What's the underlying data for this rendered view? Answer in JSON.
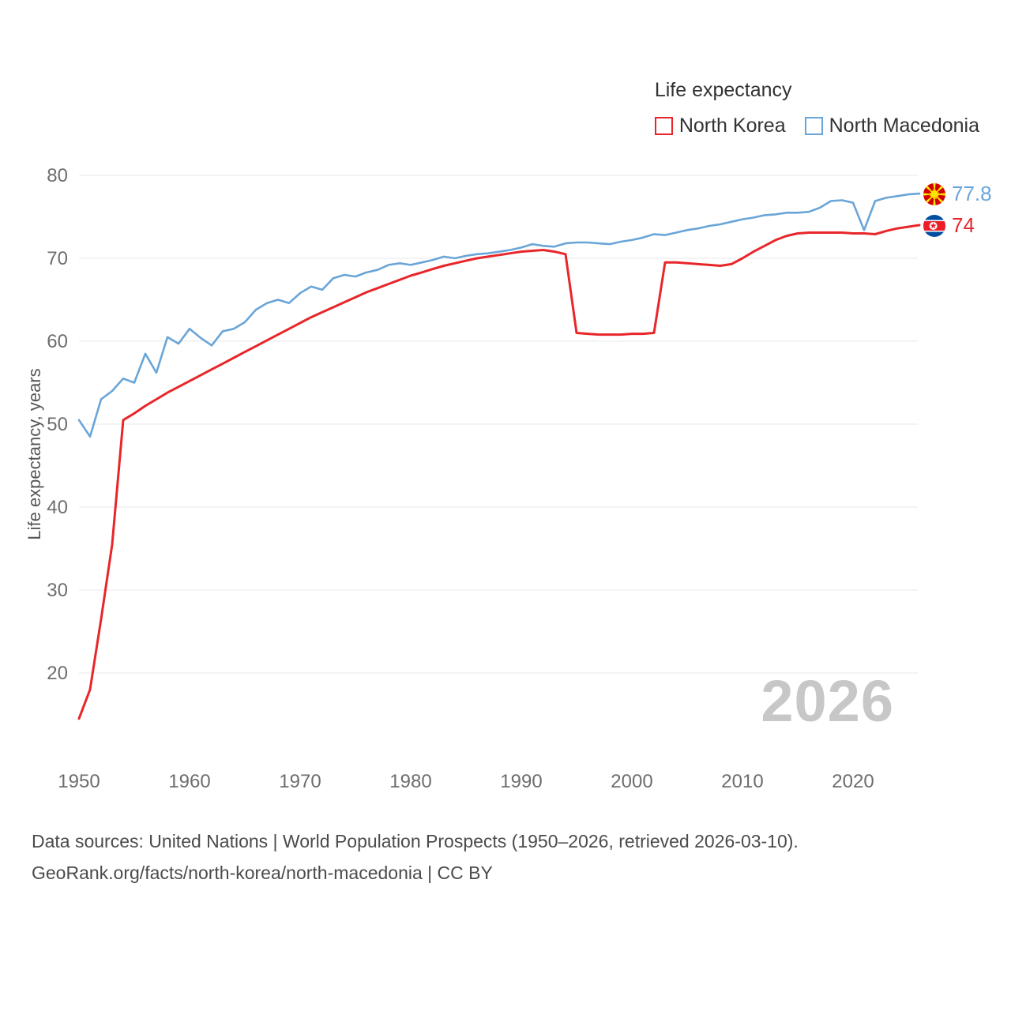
{
  "legend": {
    "title": "Life expectancy",
    "items": [
      {
        "label": "North Korea",
        "color": "#e8262a"
      },
      {
        "label": "North Macedonia",
        "color": "#6aa5d8"
      }
    ]
  },
  "chart_data": {
    "type": "line",
    "title": "Life expectancy",
    "ylabel": "Life expectancy, years",
    "xlabel": "",
    "x_range": [
      1950,
      2026
    ],
    "x_step": 1,
    "ylim": [
      14,
      80
    ],
    "yticks": [
      20,
      30,
      40,
      50,
      60,
      70,
      80
    ],
    "xticks": [
      1950,
      1960,
      1970,
      1980,
      1990,
      2000,
      2010,
      2020
    ],
    "grid": "horizontal-only",
    "legend_position": "top-right",
    "series": [
      {
        "name": "North Korea",
        "color": "#e8262a",
        "end_label": "74",
        "flag": "north-korea",
        "values": [
          14.5,
          18,
          26.5,
          35.5,
          50.5,
          51.3,
          52.2,
          53,
          53.8,
          54.5,
          55.2,
          55.9,
          56.6,
          57.3,
          58,
          58.7,
          59.4,
          60.1,
          60.8,
          61.5,
          62.2,
          62.9,
          63.5,
          64.1,
          64.7,
          65.3,
          65.9,
          66.4,
          66.9,
          67.4,
          67.9,
          68.3,
          68.7,
          69.1,
          69.4,
          69.7,
          70,
          70.2,
          70.4,
          70.6,
          70.8,
          70.9,
          71,
          70.8,
          70.5,
          61,
          60.9,
          60.8,
          60.8,
          60.8,
          60.9,
          60.9,
          61,
          69.5,
          69.5,
          69.4,
          69.3,
          69.2,
          69.1,
          69.3,
          70,
          70.8,
          71.5,
          72.2,
          72.7,
          73,
          73.1,
          73.1,
          73.1,
          73.1,
          73,
          73,
          72.9,
          73.3,
          73.6,
          73.8,
          74
        ]
      },
      {
        "name": "North Macedonia",
        "color": "#6aa5d8",
        "end_label": "77.8",
        "flag": "north-macedonia",
        "values": [
          50.5,
          48.5,
          53,
          54,
          55.5,
          55,
          58.5,
          56.2,
          60.5,
          59.7,
          61.5,
          60.4,
          59.5,
          61.2,
          61.5,
          62.3,
          63.8,
          64.6,
          65,
          64.6,
          65.8,
          66.6,
          66.2,
          67.6,
          68,
          67.8,
          68.3,
          68.6,
          69.2,
          69.4,
          69.2,
          69.5,
          69.8,
          70.2,
          70,
          70.3,
          70.5,
          70.6,
          70.8,
          71,
          71.3,
          71.7,
          71.5,
          71.4,
          71.8,
          71.9,
          71.9,
          71.8,
          71.7,
          72,
          72.2,
          72.5,
          72.9,
          72.8,
          73.1,
          73.4,
          73.6,
          73.9,
          74.1,
          74.4,
          74.7,
          74.9,
          75.2,
          75.3,
          75.5,
          75.5,
          75.6,
          76.1,
          76.9,
          77,
          76.7,
          73.4,
          76.9,
          77.3,
          77.5,
          77.7,
          77.8
        ]
      }
    ]
  },
  "watermark": "2026",
  "footer": {
    "line1": "Data sources: United Nations | World Population Prospects (1950–2026, retrieved 2026-03-10).",
    "line2": "GeoRank.org/facts/north-korea/north-macedonia | CC BY"
  }
}
